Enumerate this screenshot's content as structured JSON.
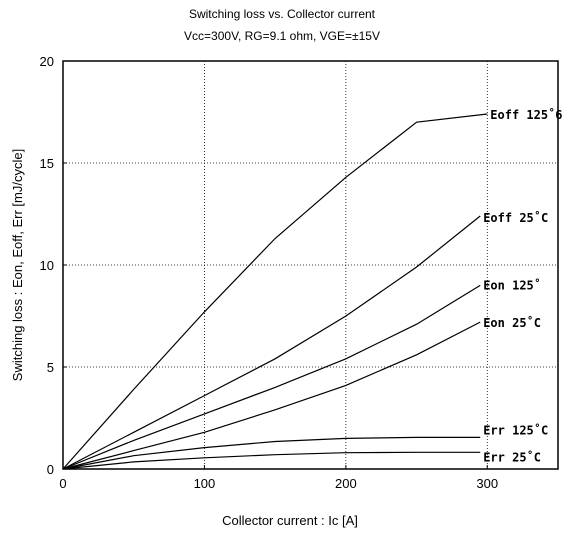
{
  "chart_data": {
    "type": "line",
    "title": "Switching loss  vs.  Collector current",
    "subtitle": "Vcc=300V, RG=9.1 ohm, VGE=±15V",
    "xlabel": "Collector current  :  Ic  [A]",
    "ylabel": "Switching loss  : Eon, Eoff, Err  [mJ/cycle]",
    "xlim": [
      0,
      350
    ],
    "ylim": [
      0,
      20
    ],
    "xticks": [
      "0",
      "100",
      "200",
      "300"
    ],
    "yticks": [
      "0",
      "5",
      "10",
      "15",
      "20"
    ],
    "grid": true,
    "legend": "inline-right",
    "series": [
      {
        "name": "Eoff 125˚C",
        "label_text": "Eoff 125˚6",
        "x": [
          0,
          50,
          100,
          150,
          200,
          250,
          300
        ],
        "y": [
          0,
          3.9,
          7.7,
          11.3,
          14.3,
          17.0,
          17.4
        ]
      },
      {
        "name": "Eoff 25˚C",
        "label_text": "Eoff 25˚C",
        "x": [
          0,
          50,
          100,
          150,
          200,
          250,
          295
        ],
        "y": [
          0,
          1.8,
          3.6,
          5.4,
          7.5,
          9.9,
          12.4
        ]
      },
      {
        "name": "Eon 125˚C",
        "label_text": "Eon 125˚",
        "x": [
          0,
          50,
          100,
          150,
          200,
          250,
          295
        ],
        "y": [
          0,
          1.4,
          2.7,
          4.0,
          5.4,
          7.1,
          9.0
        ]
      },
      {
        "name": "Eon 25˚C",
        "label_text": "Eon 25˚C",
        "x": [
          0,
          50,
          100,
          150,
          200,
          250,
          295
        ],
        "y": [
          0,
          0.9,
          1.8,
          2.9,
          4.1,
          5.6,
          7.2
        ]
      },
      {
        "name": "Err 125˚C",
        "label_text": "Err 125˚C",
        "x": [
          0,
          50,
          100,
          150,
          200,
          250,
          295
        ],
        "y": [
          0,
          0.65,
          1.05,
          1.35,
          1.5,
          1.55,
          1.55
        ]
      },
      {
        "name": "Err 25˚C",
        "label_text": "Err 25˚C",
        "x": [
          0,
          50,
          100,
          150,
          200,
          250,
          295
        ],
        "y": [
          0,
          0.35,
          0.55,
          0.7,
          0.8,
          0.82,
          0.82
        ]
      }
    ]
  }
}
